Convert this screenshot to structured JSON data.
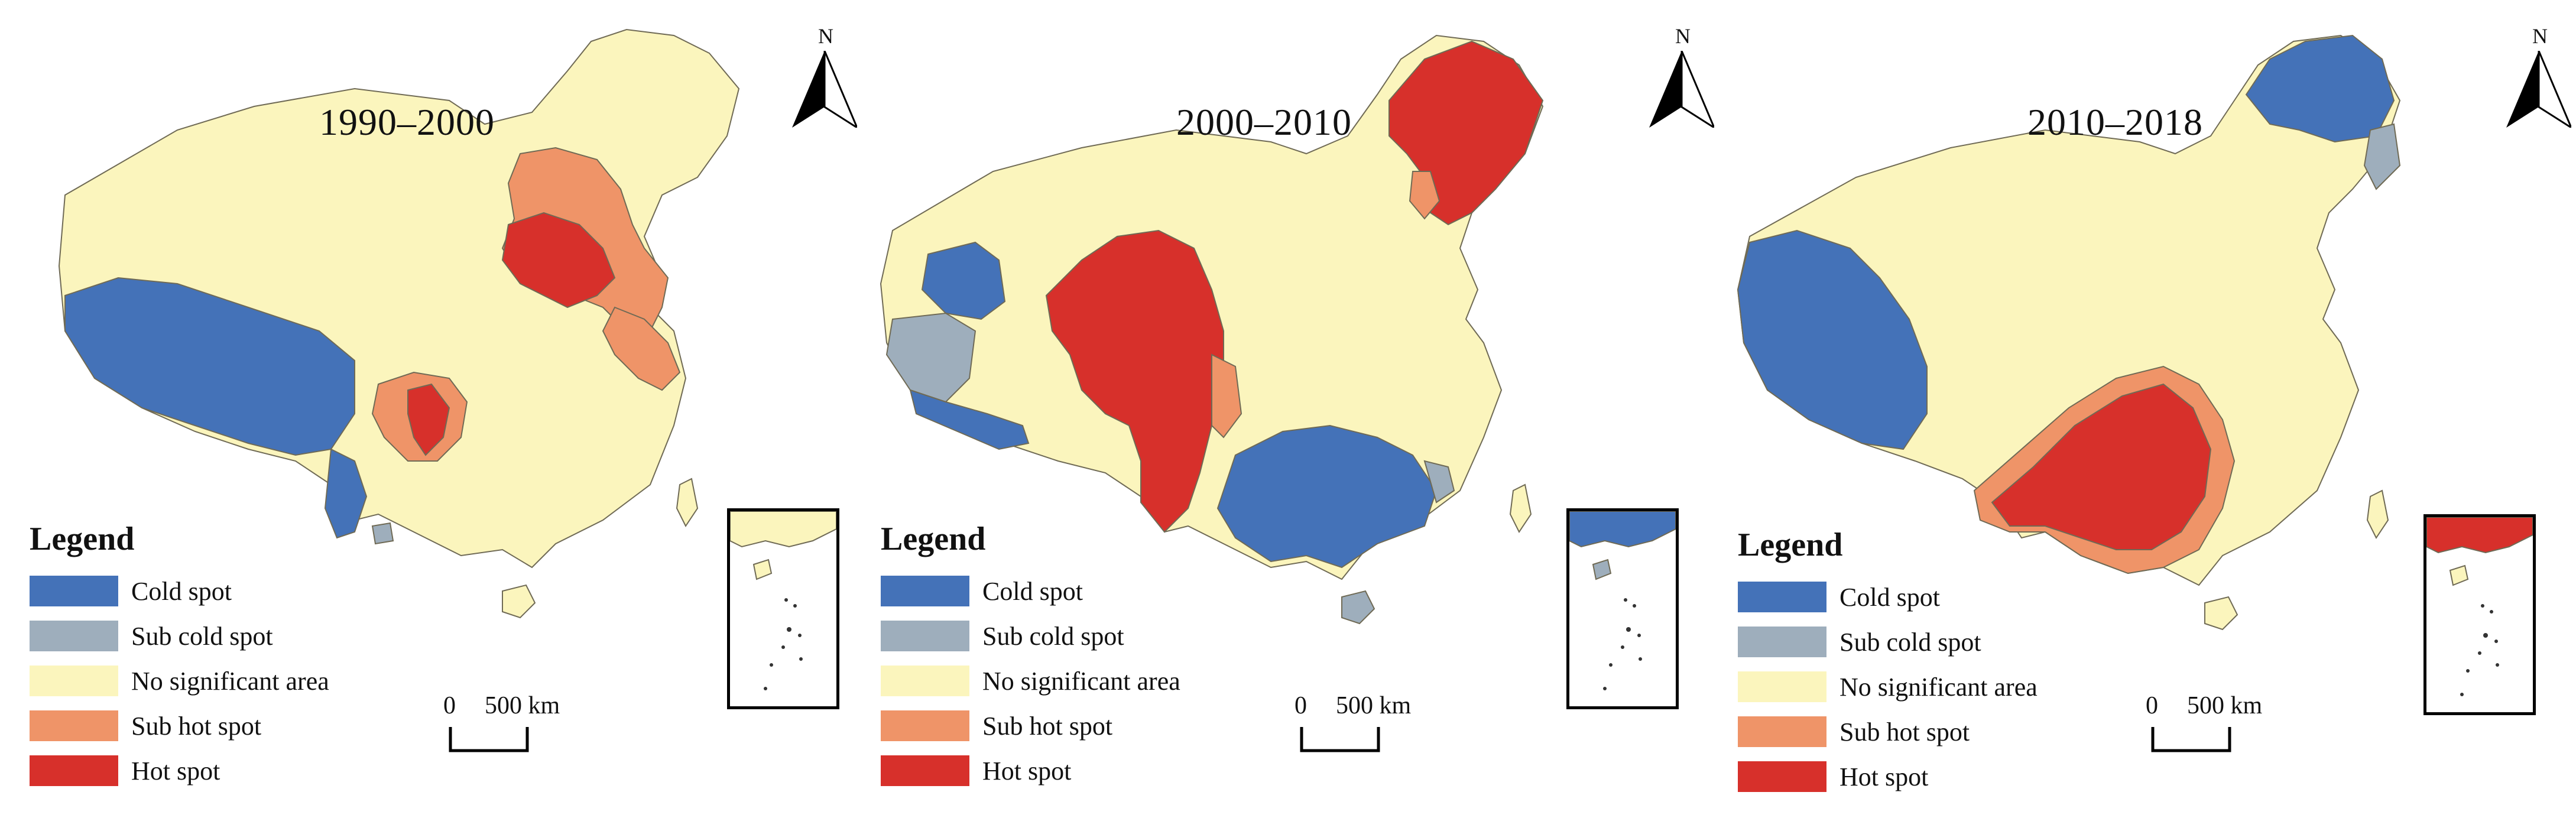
{
  "figure": {
    "panels": [
      {
        "period": "1990–2000",
        "north_label": "N",
        "scale": {
          "zero": "0",
          "distance": "500 km"
        },
        "regions": {
          "northwest_west": "cold_spot",
          "far_northeast": "no_significant",
          "north_china_core": "hot_spot",
          "north_china_ring": "sub_hot_spot",
          "east_coast_belt": "sub_hot_spot",
          "sichuan_basin": "sub_hot_spot",
          "sichuan_core": "hot_spot",
          "central_west": "no_significant",
          "south": "no_significant",
          "southwest_tail": "cold_spot",
          "southwest_speck": "sub_cold_spot"
        }
      },
      {
        "period": "2000–2010",
        "north_label": "N",
        "scale": {
          "zero": "0",
          "distance": "500 km"
        },
        "regions": {
          "far_northeast": "hot_spot",
          "northeast_pocket": "sub_hot_spot",
          "xinjiang_west": "cold_spot",
          "tibet_west": "sub_cold_spot",
          "tibet_south": "cold_spot",
          "qinghai_sichuan": "hot_spot",
          "sichuan_east_edge": "sub_hot_spot",
          "south_china": "cold_spot",
          "hainan": "sub_cold_spot",
          "southeast_edge": "sub_cold_spot",
          "rest": "no_significant"
        }
      },
      {
        "period": "2010–2018",
        "north_label": "N",
        "scale": {
          "zero": "0",
          "distance": "500 km"
        },
        "regions": {
          "far_northeast": "cold_spot",
          "northeast_edge": "sub_cold_spot",
          "xinjiang_tibet": "cold_spot",
          "south_central": "hot_spot",
          "south_central_ring": "sub_hot_spot",
          "rest": "no_significant"
        }
      }
    ],
    "legend": {
      "title": "Legend",
      "items": [
        {
          "key": "cold_spot",
          "label": "Cold spot",
          "color": "#4472b8"
        },
        {
          "key": "sub_cold_spot",
          "label": "Sub cold spot",
          "color": "#9eaebc"
        },
        {
          "key": "no_significant",
          "label": "No significant area",
          "color": "#fbf5bd"
        },
        {
          "key": "sub_hot_spot",
          "label": "Sub hot spot",
          "color": "#ef9468"
        },
        {
          "key": "hot_spot",
          "label": "Hot spot",
          "color": "#d7302b"
        }
      ]
    },
    "colors": {
      "boundary": "#6f6a55",
      "background": "#ffffff"
    }
  }
}
